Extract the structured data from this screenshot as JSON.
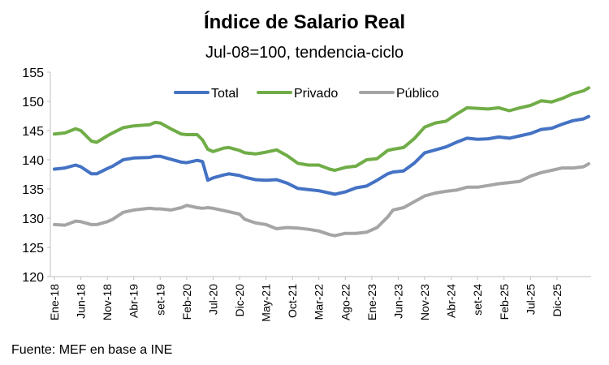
{
  "chart_data": {
    "type": "line",
    "title": "Índice de Salario Real",
    "subtitle": "Jul-08=100, tendencia-ciclo",
    "source": "Fuente: MEF en base a INE",
    "ylim": [
      120,
      155
    ],
    "y_ticks": [
      120,
      125,
      130,
      135,
      140,
      145,
      150,
      155
    ],
    "x_tick_labels": [
      "Ene-18",
      "Jun-18",
      "Nov-18",
      "Abr-19",
      "set-19",
      "Feb-20",
      "Jul-20",
      "Dic-20",
      "May-21",
      "Oct-21",
      "Mar-22",
      "Ago-22",
      "Ene-23",
      "Jun-23",
      "Nov-23",
      "Abr-24",
      "set-24",
      "Feb-25",
      "Jul-25",
      "Dic-25"
    ],
    "x_tick_months": [
      0,
      5,
      10,
      15,
      20,
      25,
      30,
      35,
      40,
      45,
      50,
      55,
      60,
      65,
      70,
      75,
      80,
      85,
      90,
      95
    ],
    "legend_position": "top",
    "grid": false,
    "series": [
      {
        "name": "Total",
        "color": "#4472C4",
        "values": [
          [
            0,
            138.4
          ],
          [
            2,
            138.6
          ],
          [
            4,
            139.1
          ],
          [
            5,
            138.8
          ],
          [
            7,
            137.6
          ],
          [
            8,
            137.6
          ],
          [
            10,
            138.5
          ],
          [
            11,
            138.9
          ],
          [
            13,
            140.0
          ],
          [
            15,
            140.3
          ],
          [
            18,
            140.4
          ],
          [
            19,
            140.6
          ],
          [
            20,
            140.6
          ],
          [
            22,
            140.1
          ],
          [
            24,
            139.6
          ],
          [
            25,
            139.5
          ],
          [
            27,
            139.9
          ],
          [
            28,
            139.7
          ],
          [
            29,
            136.5
          ],
          [
            30,
            136.9
          ],
          [
            32,
            137.4
          ],
          [
            33,
            137.6
          ],
          [
            35,
            137.3
          ],
          [
            36,
            137.0
          ],
          [
            38,
            136.6
          ],
          [
            40,
            136.5
          ],
          [
            42,
            136.6
          ],
          [
            44,
            136.0
          ],
          [
            46,
            135.1
          ],
          [
            48,
            134.9
          ],
          [
            50,
            134.7
          ],
          [
            52,
            134.3
          ],
          [
            53,
            134.1
          ],
          [
            55,
            134.5
          ],
          [
            57,
            135.2
          ],
          [
            59,
            135.5
          ],
          [
            61,
            136.5
          ],
          [
            63,
            137.6
          ],
          [
            64,
            137.9
          ],
          [
            66,
            138.1
          ],
          [
            68,
            139.4
          ],
          [
            70,
            141.2
          ],
          [
            72,
            141.7
          ],
          [
            74,
            142.2
          ],
          [
            76,
            143.0
          ],
          [
            78,
            143.7
          ],
          [
            80,
            143.5
          ],
          [
            82,
            143.6
          ],
          [
            84,
            143.9
          ],
          [
            86,
            143.7
          ],
          [
            88,
            144.1
          ],
          [
            90,
            144.5
          ],
          [
            92,
            145.2
          ],
          [
            94,
            145.4
          ],
          [
            96,
            146.1
          ],
          [
            98,
            146.7
          ],
          [
            100,
            147.0
          ],
          [
            101,
            147.4
          ]
        ]
      },
      {
        "name": "Privado",
        "color": "#70AD47",
        "values": [
          [
            0,
            144.4
          ],
          [
            2,
            144.6
          ],
          [
            4,
            145.3
          ],
          [
            5,
            145.0
          ],
          [
            7,
            143.2
          ],
          [
            8,
            143.0
          ],
          [
            10,
            144.1
          ],
          [
            11,
            144.6
          ],
          [
            13,
            145.5
          ],
          [
            15,
            145.8
          ],
          [
            18,
            146.0
          ],
          [
            19,
            146.4
          ],
          [
            20,
            146.3
          ],
          [
            22,
            145.3
          ],
          [
            24,
            144.4
          ],
          [
            25,
            144.3
          ],
          [
            27,
            144.3
          ],
          [
            28,
            143.4
          ],
          [
            29,
            141.8
          ],
          [
            30,
            141.4
          ],
          [
            32,
            142.0
          ],
          [
            33,
            142.1
          ],
          [
            35,
            141.6
          ],
          [
            36,
            141.2
          ],
          [
            38,
            141.0
          ],
          [
            40,
            141.3
          ],
          [
            42,
            141.7
          ],
          [
            44,
            140.7
          ],
          [
            46,
            139.4
          ],
          [
            48,
            139.1
          ],
          [
            50,
            139.1
          ],
          [
            52,
            138.4
          ],
          [
            53,
            138.2
          ],
          [
            55,
            138.7
          ],
          [
            57,
            138.9
          ],
          [
            59,
            140.0
          ],
          [
            61,
            140.2
          ],
          [
            63,
            141.6
          ],
          [
            64,
            141.8
          ],
          [
            66,
            142.1
          ],
          [
            68,
            143.6
          ],
          [
            70,
            145.6
          ],
          [
            72,
            146.3
          ],
          [
            74,
            146.6
          ],
          [
            76,
            147.8
          ],
          [
            78,
            148.9
          ],
          [
            80,
            148.8
          ],
          [
            82,
            148.7
          ],
          [
            84,
            148.9
          ],
          [
            86,
            148.4
          ],
          [
            88,
            148.9
          ],
          [
            90,
            149.3
          ],
          [
            92,
            150.1
          ],
          [
            94,
            149.9
          ],
          [
            96,
            150.5
          ],
          [
            98,
            151.3
          ],
          [
            100,
            151.8
          ],
          [
            101,
            152.3
          ]
        ]
      },
      {
        "name": "Público",
        "color": "#A5A5A5",
        "values": [
          [
            0,
            128.9
          ],
          [
            2,
            128.8
          ],
          [
            4,
            129.5
          ],
          [
            5,
            129.4
          ],
          [
            7,
            128.9
          ],
          [
            8,
            128.9
          ],
          [
            10,
            129.4
          ],
          [
            11,
            129.8
          ],
          [
            13,
            131.0
          ],
          [
            15,
            131.4
          ],
          [
            18,
            131.7
          ],
          [
            19,
            131.6
          ],
          [
            20,
            131.6
          ],
          [
            22,
            131.4
          ],
          [
            24,
            131.8
          ],
          [
            25,
            132.2
          ],
          [
            27,
            131.8
          ],
          [
            28,
            131.7
          ],
          [
            29,
            131.8
          ],
          [
            30,
            131.7
          ],
          [
            32,
            131.3
          ],
          [
            33,
            131.1
          ],
          [
            35,
            130.7
          ],
          [
            36,
            129.8
          ],
          [
            38,
            129.2
          ],
          [
            40,
            128.9
          ],
          [
            42,
            128.2
          ],
          [
            44,
            128.4
          ],
          [
            46,
            128.3
          ],
          [
            48,
            128.1
          ],
          [
            50,
            127.8
          ],
          [
            52,
            127.2
          ],
          [
            53,
            127.0
          ],
          [
            55,
            127.4
          ],
          [
            57,
            127.4
          ],
          [
            59,
            127.6
          ],
          [
            61,
            128.4
          ],
          [
            63,
            130.2
          ],
          [
            64,
            131.4
          ],
          [
            66,
            131.8
          ],
          [
            68,
            132.8
          ],
          [
            70,
            133.8
          ],
          [
            72,
            134.3
          ],
          [
            74,
            134.6
          ],
          [
            76,
            134.8
          ],
          [
            78,
            135.3
          ],
          [
            80,
            135.3
          ],
          [
            82,
            135.6
          ],
          [
            84,
            135.9
          ],
          [
            86,
            136.1
          ],
          [
            88,
            136.3
          ],
          [
            90,
            137.2
          ],
          [
            92,
            137.8
          ],
          [
            94,
            138.2
          ],
          [
            96,
            138.6
          ],
          [
            98,
            138.6
          ],
          [
            100,
            138.8
          ],
          [
            101,
            139.3
          ]
        ]
      }
    ]
  }
}
